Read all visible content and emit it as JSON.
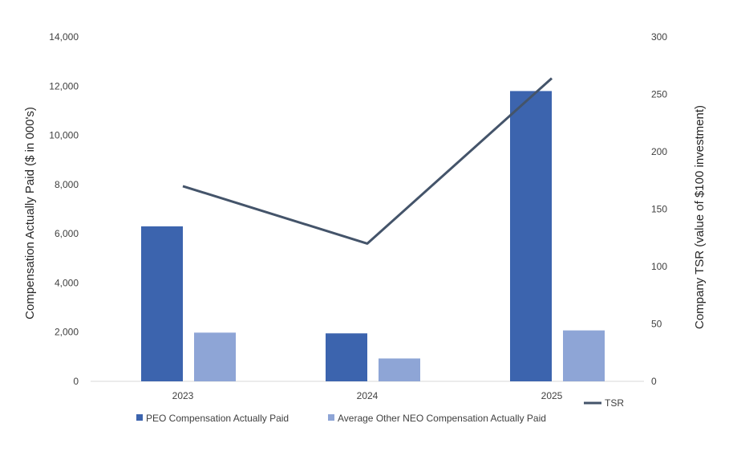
{
  "chart_data": {
    "type": "bar",
    "categories": [
      "2023",
      "2024",
      "2025"
    ],
    "series": [
      {
        "name": "PEO Compensation Actually Paid",
        "values": [
          6300,
          1950,
          11800
        ],
        "color": "#3c64ae",
        "axis": "left"
      },
      {
        "name": "Average Other NEO Compensation Actually Paid",
        "values": [
          1980,
          930,
          2070
        ],
        "color": "#8ea5d6",
        "axis": "left"
      }
    ],
    "line_series": [
      {
        "name": "TSR",
        "values": [
          170,
          120,
          264
        ],
        "color": "#44546a",
        "axis": "right"
      }
    ],
    "ylabel": "Compensation Actually Paid ($ in 000's)",
    "y2label": "Company TSR (value of $100 investment)",
    "ylim": [
      0,
      14000
    ],
    "y2lim": [
      0,
      300
    ],
    "yticks": [
      "0",
      "2,000",
      "4,000",
      "6,000",
      "8,000",
      "10,000",
      "12,000",
      "14,000"
    ],
    "y2ticks": [
      "0",
      "50",
      "100",
      "150",
      "200",
      "250",
      "300"
    ],
    "grid": false,
    "legend_position": "bottom"
  }
}
